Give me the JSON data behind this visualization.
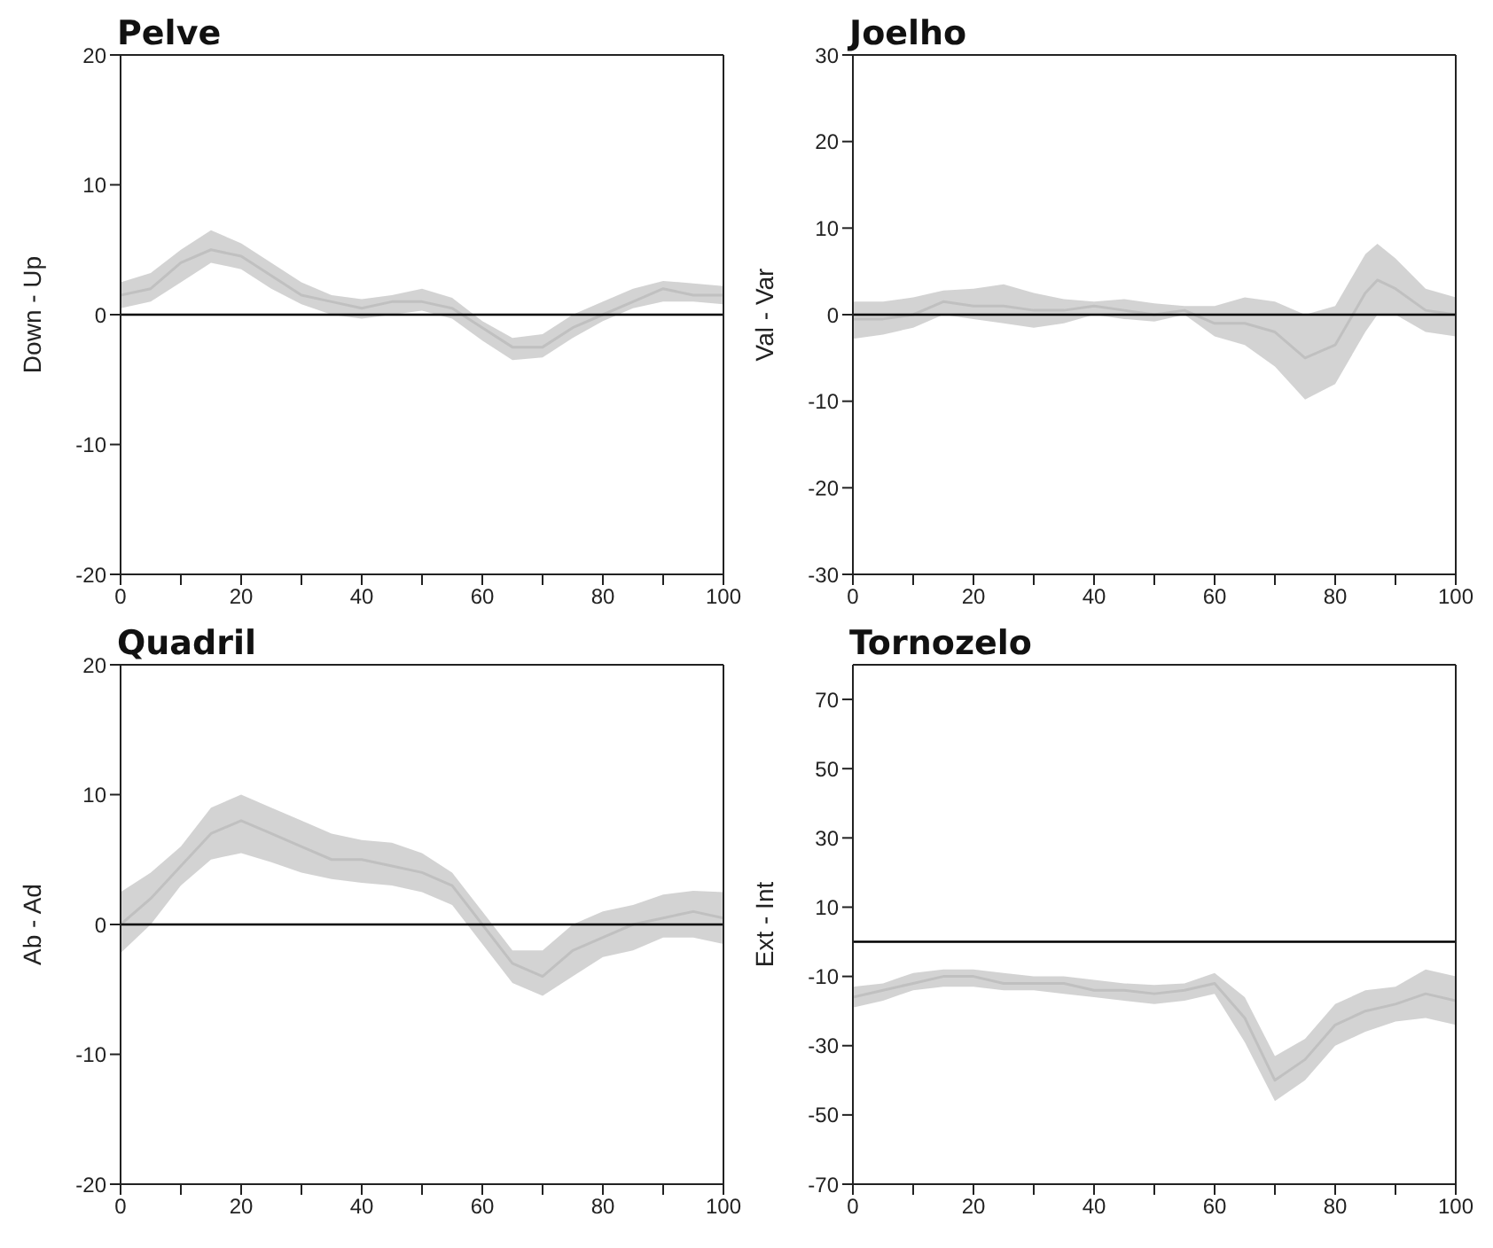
{
  "chart_data": [
    {
      "type": "line",
      "title": "Pelve",
      "ylabel": "Down - Up",
      "x": [
        0,
        5,
        10,
        15,
        20,
        25,
        30,
        35,
        40,
        45,
        50,
        55,
        60,
        65,
        70,
        75,
        80,
        85,
        90,
        95,
        100
      ],
      "xlim": [
        0,
        100
      ],
      "xticks": [
        0,
        {
          "value": 10,
          "label": null
        },
        20,
        {
          "value": 30,
          "label": null
        },
        40,
        {
          "value": 50,
          "label": null
        },
        60,
        {
          "value": 70,
          "label": null
        },
        80,
        {
          "value": 90,
          "label": null
        },
        100
      ],
      "ylim": [
        -20,
        20
      ],
      "yticks": [
        -20,
        -10,
        0,
        10,
        20
      ],
      "ref_lines": [
        {
          "axis": "y",
          "value": 0,
          "color": "#000000"
        }
      ],
      "series": [
        {
          "color": "#c0c0c0",
          "values": [
            1.5,
            2,
            4,
            5,
            4.5,
            3,
            1.5,
            1,
            0.5,
            1,
            1,
            0.5,
            -1,
            -2.5,
            -2.5,
            -1,
            0,
            1,
            2,
            1.5,
            1.5
          ],
          "lower": [
            0.5,
            1,
            2.5,
            4,
            3.5,
            2,
            0.8,
            0,
            -0.3,
            0,
            0.3,
            -0.3,
            -2,
            -3.5,
            -3.3,
            -1.8,
            -0.5,
            0.5,
            1,
            1,
            0.8
          ],
          "upper": [
            2.5,
            3.2,
            5,
            6.5,
            5.5,
            4,
            2.5,
            1.5,
            1.2,
            1.5,
            2,
            1.3,
            -0.5,
            -1.8,
            -1.5,
            0,
            1,
            2,
            2.6,
            2.4,
            2.2
          ]
        }
      ]
    },
    {
      "type": "line",
      "title": "Joelho",
      "ylabel": "Val - Var",
      "x": [
        0,
        5,
        10,
        15,
        20,
        25,
        30,
        35,
        40,
        45,
        50,
        55,
        60,
        65,
        70,
        75,
        80,
        85,
        87,
        90,
        95,
        100
      ],
      "xlim": [
        0,
        100
      ],
      "xticks": [
        0,
        {
          "value": 10,
          "label": null
        },
        20,
        {
          "value": 30,
          "label": null
        },
        40,
        {
          "value": 50,
          "label": null
        },
        60,
        {
          "value": 70,
          "label": null
        },
        80,
        {
          "value": 90,
          "label": null
        },
        100
      ],
      "ylim": [
        -30,
        30
      ],
      "yticks": [
        -30,
        -20,
        -10,
        0,
        10,
        20,
        30
      ],
      "ref_lines": [
        {
          "axis": "y",
          "value": 0,
          "color": "#000000"
        }
      ],
      "series": [
        {
          "color": "#c0c0c0",
          "values": [
            -0.5,
            -0.5,
            0,
            1.5,
            1,
            1,
            0.5,
            0.5,
            1,
            0.5,
            0,
            0.5,
            -1,
            -1,
            -2,
            -5,
            -3.5,
            2.5,
            4,
            3,
            0.5,
            0
          ],
          "lower": [
            -2.8,
            -2.3,
            -1.5,
            0,
            -0.5,
            -1,
            -1.5,
            -1,
            0,
            -0.5,
            -0.8,
            0,
            -2.5,
            -3.5,
            -6,
            -9.8,
            -8,
            -2,
            0,
            0,
            -2,
            -2.5
          ],
          "upper": [
            1.5,
            1.5,
            2,
            2.8,
            3,
            3.5,
            2.5,
            1.8,
            1.5,
            1.8,
            1.3,
            1,
            1,
            2,
            1.5,
            0,
            1,
            7,
            8.2,
            6.5,
            3,
            2
          ]
        }
      ]
    },
    {
      "type": "line",
      "title": "Quadril",
      "ylabel": "Ab - Ad",
      "x": [
        0,
        5,
        10,
        15,
        20,
        25,
        30,
        35,
        40,
        45,
        50,
        55,
        60,
        65,
        70,
        75,
        80,
        85,
        90,
        95,
        100
      ],
      "xlim": [
        0,
        100
      ],
      "xticks": [
        0,
        {
          "value": 10,
          "label": null
        },
        20,
        {
          "value": 30,
          "label": null
        },
        40,
        {
          "value": 50,
          "label": null
        },
        60,
        {
          "value": 70,
          "label": null
        },
        80,
        {
          "value": 90,
          "label": null
        },
        100
      ],
      "ylim": [
        -20,
        20
      ],
      "yticks": [
        -20,
        -10,
        0,
        10,
        20
      ],
      "ref_lines": [
        {
          "axis": "y",
          "value": 0,
          "color": "#000000"
        }
      ],
      "series": [
        {
          "color": "#c0c0c0",
          "values": [
            0,
            2,
            4.5,
            7,
            8,
            7,
            6,
            5,
            5,
            4.5,
            4,
            3,
            0,
            -3,
            -4,
            -2,
            -1,
            0,
            0.5,
            1,
            0.5
          ],
          "lower": [
            -2.2,
            0,
            3,
            5,
            5.5,
            4.8,
            4,
            3.5,
            3.2,
            3,
            2.5,
            1.5,
            -1.5,
            -4.5,
            -5.5,
            -4,
            -2.5,
            -2,
            -1,
            -1,
            -1.5
          ],
          "upper": [
            2.5,
            4,
            6,
            9,
            10,
            9,
            8,
            7,
            6.5,
            6.3,
            5.5,
            4,
            1,
            -2,
            -2,
            0,
            1,
            1.5,
            2.3,
            2.6,
            2.5
          ]
        }
      ]
    },
    {
      "type": "line",
      "title": "Tornozelo",
      "ylabel": "Ext - Int",
      "x": [
        0,
        5,
        10,
        15,
        20,
        25,
        30,
        35,
        40,
        45,
        50,
        55,
        60,
        65,
        70,
        75,
        80,
        85,
        90,
        95,
        100
      ],
      "xlim": [
        0,
        100
      ],
      "xticks": [
        0,
        {
          "value": 10,
          "label": null
        },
        20,
        {
          "value": 30,
          "label": null
        },
        40,
        {
          "value": 50,
          "label": null
        },
        60,
        {
          "value": 70,
          "label": null
        },
        80,
        {
          "value": 90,
          "label": null
        },
        100
      ],
      "ylim": [
        -70,
        80
      ],
      "yticks": [
        -70,
        -50,
        -30,
        -10,
        10,
        30,
        50,
        70
      ],
      "ref_lines": [
        {
          "axis": "y",
          "value": 0,
          "color": "#000000"
        }
      ],
      "series": [
        {
          "color": "#c0c0c0",
          "values": [
            -16,
            -14,
            -12,
            -10,
            -10,
            -12,
            -12,
            -12,
            -14,
            -14,
            -15,
            -14,
            -12,
            -22,
            -40,
            -34,
            -24,
            -20,
            -18,
            -15,
            -17
          ],
          "lower": [
            -19,
            -17,
            -14,
            -13,
            -13,
            -14,
            -14,
            -15,
            -16,
            -17,
            -18,
            -17,
            -15,
            -29,
            -46,
            -40,
            -30,
            -26,
            -23,
            -22,
            -24
          ],
          "upper": [
            -13,
            -12,
            -9,
            -8,
            -8,
            -9,
            -10,
            -10,
            -11,
            -12,
            -12.5,
            -12,
            -9,
            -16,
            -33,
            -28,
            -18,
            -14,
            -13,
            -8,
            -10
          ]
        }
      ]
    }
  ]
}
